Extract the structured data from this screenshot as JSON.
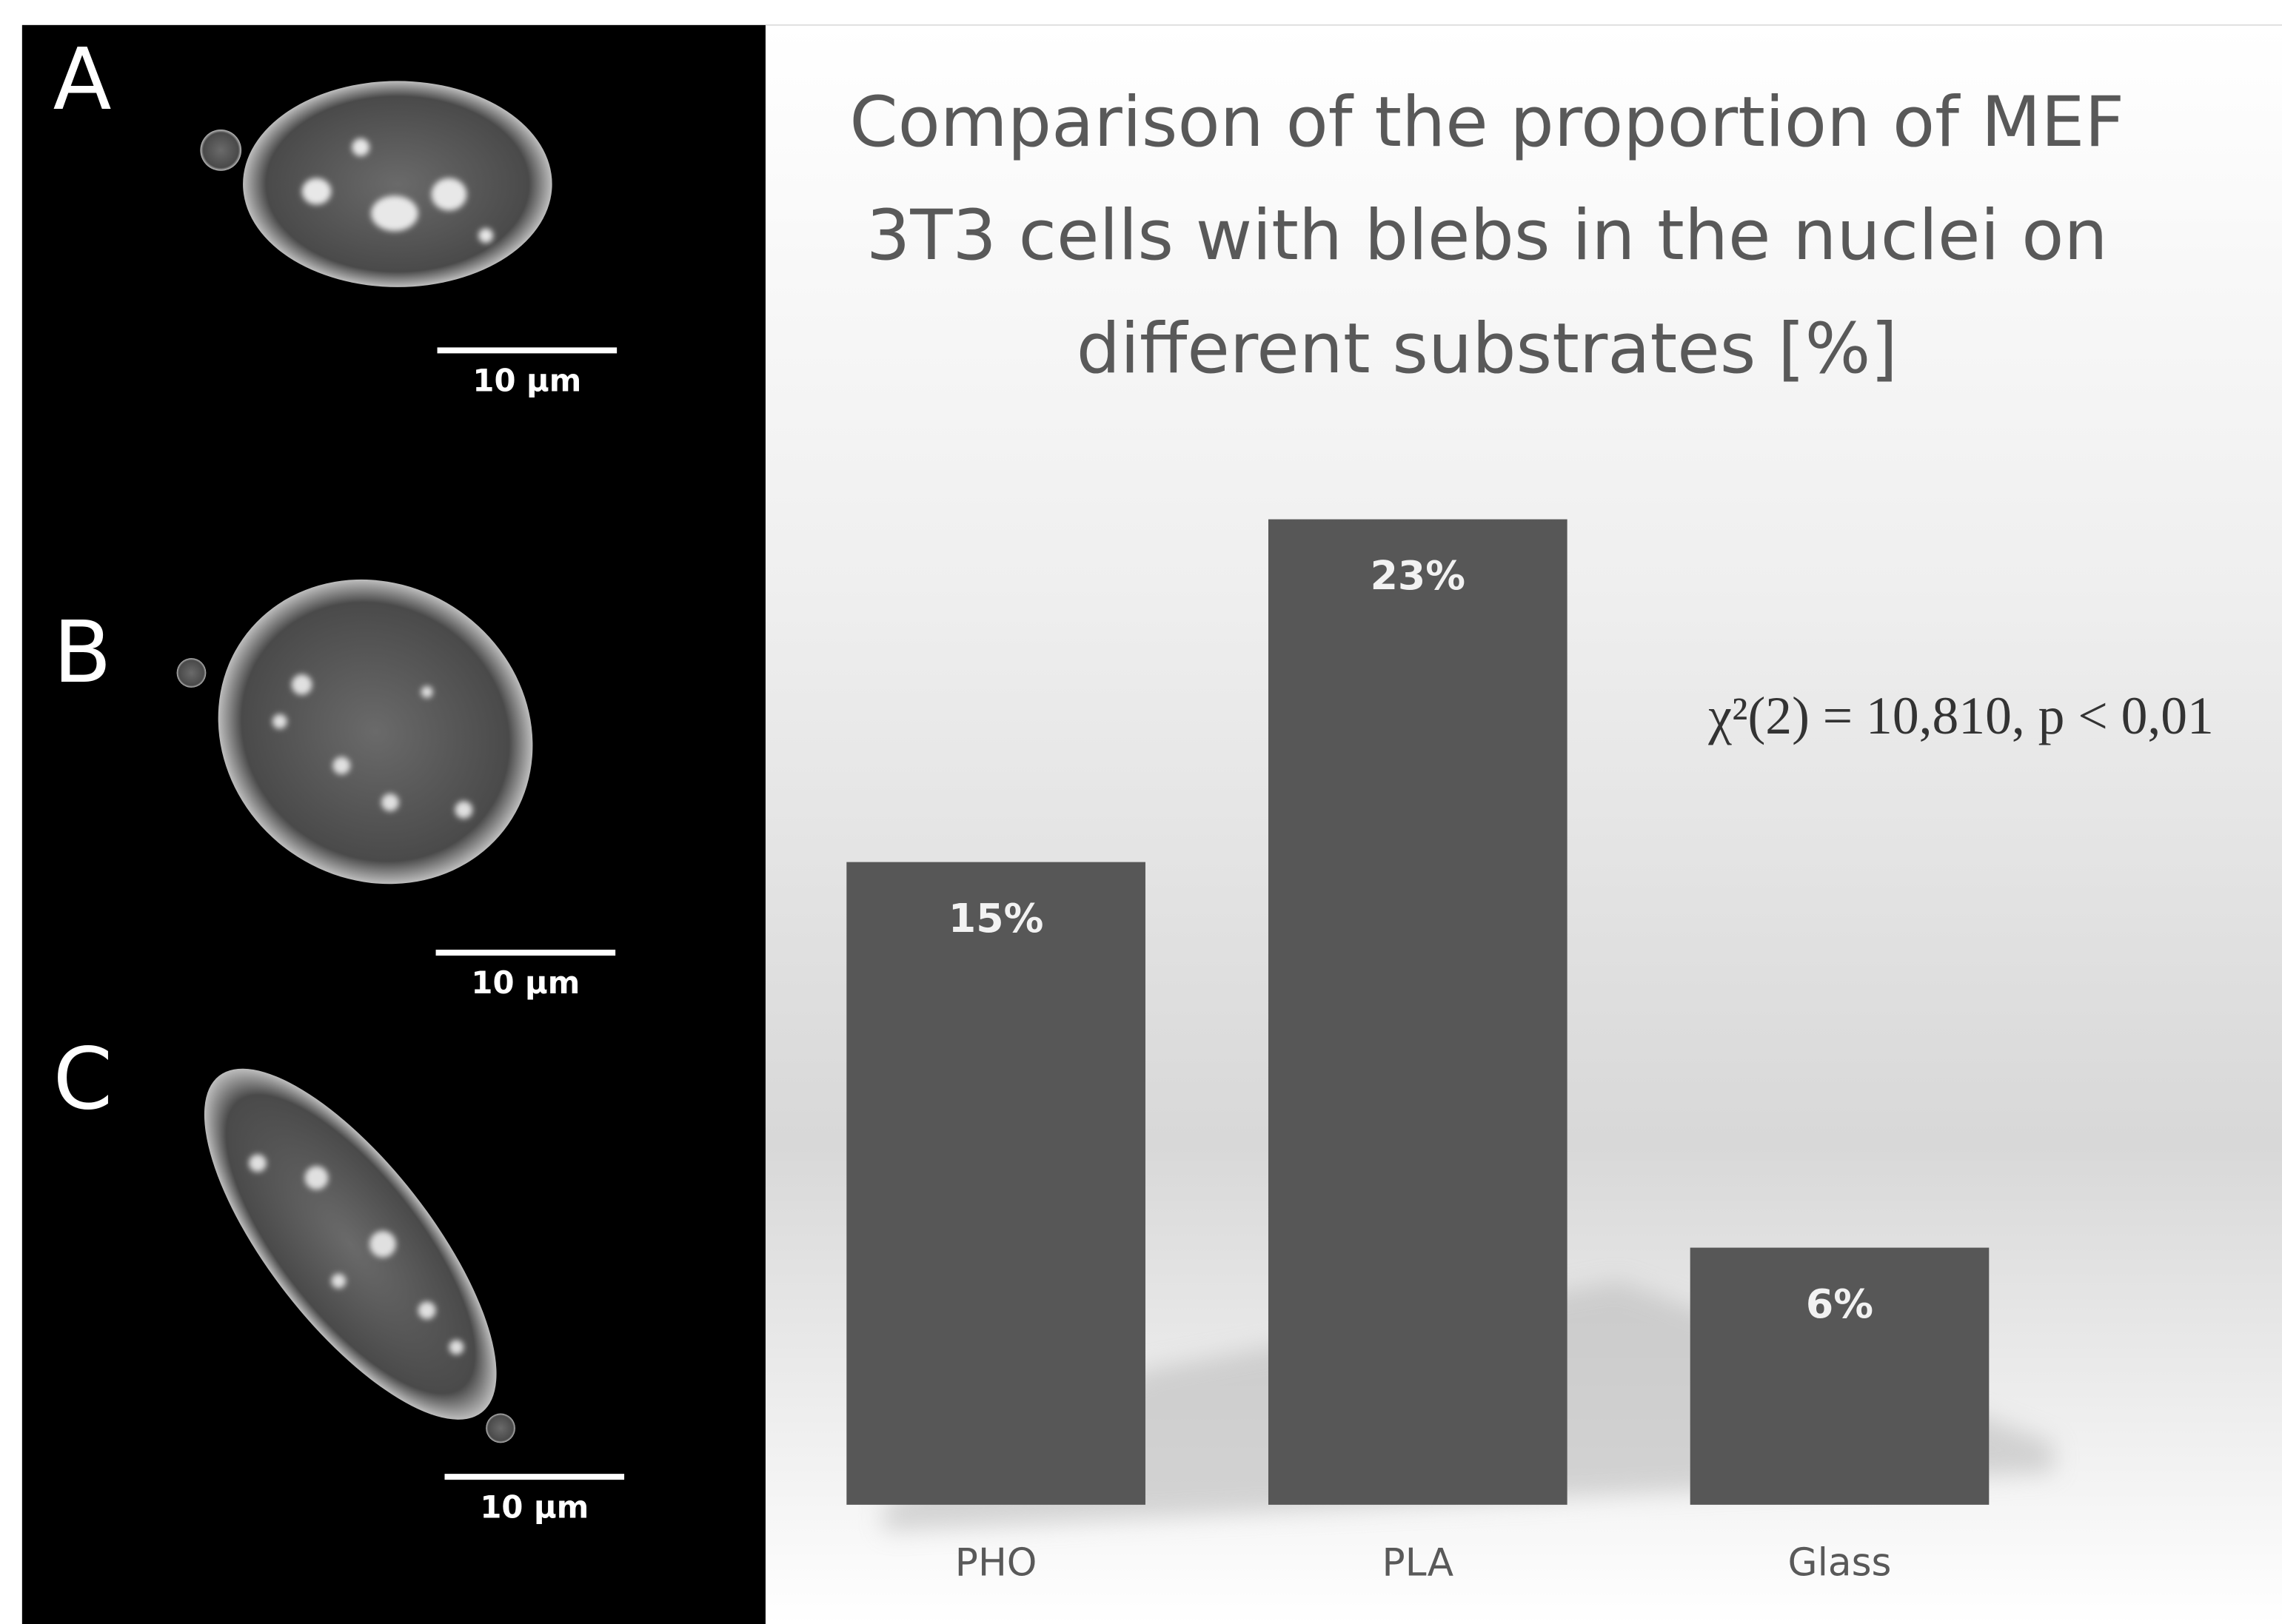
{
  "panels": [
    {
      "label": "A",
      "scale_bar": "10 µm"
    },
    {
      "label": "B",
      "scale_bar": "10 µm"
    },
    {
      "label": "C",
      "scale_bar": "10 µm"
    }
  ],
  "chart_data": {
    "type": "bar",
    "title": "Comparison of the proportion of MEF 3T3 cells with blebs in the nuclei on different substrates [%]",
    "categories": [
      "PHO",
      "PLA",
      "Glass"
    ],
    "values": [
      15,
      23,
      6
    ],
    "value_labels": [
      "15%",
      "23%",
      "6%"
    ],
    "color": "#575757",
    "annotation": "χ²(2) = 10,810, p < 0,01"
  }
}
